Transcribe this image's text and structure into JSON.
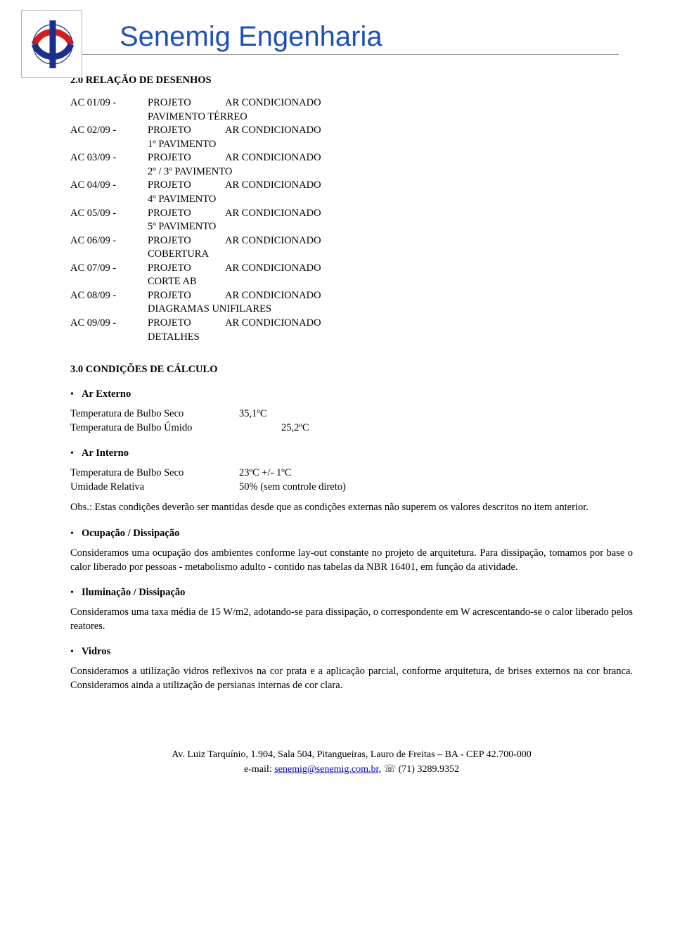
{
  "header": {
    "title": "Senemig Engenharia",
    "logo": {
      "border_color": "#b0b0d0",
      "arc_top_color": "#d01f1f",
      "arc_bottom_color": "#1a2f8a",
      "bar_color": "#1a2f8a"
    }
  },
  "section2": {
    "title": "2.0      RELAÇÃO DE DESENHOS",
    "rows": [
      {
        "code": "AC 01/09 -",
        "proj": "PROJETO",
        "desc": "AR CONDICIONADO",
        "sub": "PAVIMENTO TÉRREO"
      },
      {
        "code": "AC 02/09 -",
        "proj": "PROJETO",
        "desc": "AR CONDICIONADO",
        "sub": "1º PAVIMENTO"
      },
      {
        "code": "AC 03/09 -",
        "proj": "PROJETO",
        "desc": "AR CONDICIONADO",
        "sub": "2º / 3º PAVIMENTO"
      },
      {
        "code": "AC 04/09 -",
        "proj": "PROJETO",
        "desc": "AR CONDICIONADO",
        "sub": "4º PAVIMENTO"
      },
      {
        "code": "AC 05/09 -",
        "proj": "PROJETO",
        "desc": "AR CONDICIONADO",
        "sub": "5º PAVIMENTO"
      },
      {
        "code": "AC 06/09 -",
        "proj": "PROJETO",
        "desc": "AR CONDICIONADO",
        "sub": "COBERTURA"
      },
      {
        "code": "AC 07/09 -",
        "proj": "PROJETO",
        "desc": "AR CONDICIONADO",
        "sub": "CORTE AB"
      },
      {
        "code": "AC 08/09 -",
        "proj": "PROJETO",
        "desc": "AR CONDICIONADO",
        "sub": "DIAGRAMAS UNIFILARES"
      },
      {
        "code": "AC 09/09 -",
        "proj": "PROJETO",
        "desc": "AR CONDICIONADO",
        "sub": "DETALHES"
      }
    ]
  },
  "section3": {
    "title": "3.0       CONDIÇÕES DE CÁLCULO",
    "ar_externo": {
      "label": "Ar Externo",
      "rows": [
        {
          "k": "Temperatura de Bulbo Seco",
          "v": "35,1ºC"
        },
        {
          "k": "Temperatura de Bulbo Úmido",
          "v": "25,2ºC"
        }
      ]
    },
    "ar_interno": {
      "label": "Ar Interno",
      "rows": [
        {
          "k": "Temperatura de Bulbo Seco",
          "v": "23ºC +/- 1ºC"
        },
        {
          "k": "Umidade Relativa",
          "v": "50% (sem controle direto)"
        }
      ]
    },
    "obs": "Obs.: Estas condições deverão ser mantidas desde que as condições externas não superem os valores descritos no item anterior.",
    "ocupacao": {
      "label": "Ocupação / Dissipação",
      "text": "Consideramos uma ocupação dos ambientes conforme lay-out constante no projeto de arquitetura. Para dissipação, tomamos por base o calor liberado por pessoas - metabolismo adulto - contido nas tabelas da NBR 16401, em função da atividade."
    },
    "iluminacao": {
      "label": "Iluminação / Dissipação",
      "text": "Consideramos uma taxa média de 15 W/m2, adotando-se para dissipação, o correspondente em W acrescentando-se o calor liberado pelos reatores."
    },
    "vidros": {
      "label": "Vidros",
      "text": "Consideramos a utilização vidros reflexivos na cor prata e a aplicação parcial, conforme arquitetura, de brises externos na cor branca. Consideramos ainda a utilização de persianas internas de cor clara."
    }
  },
  "footer": {
    "line1_a": "Av. Luiz Tarquínio, 1.904, Sala 504, Pitangueiras, Lauro de Freitas – BA -  CEP 42.700-000",
    "line2_prefix": "e-mail: ",
    "line2_link": "senemig@senemig.com.br",
    "line2_suffix": ", ",
    "phone_icon": "☏",
    "phone": " (71) 3289.9352"
  }
}
